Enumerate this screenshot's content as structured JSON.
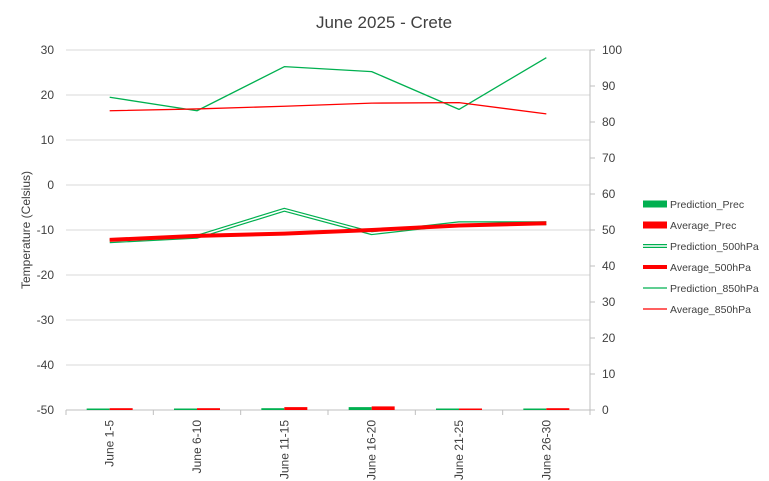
{
  "chart_data": {
    "type": "line",
    "title": "June 2025 - Crete",
    "ylabel": "Temperature (Celsius)",
    "y2label": "",
    "categories": [
      "June 1-5",
      "June 6-10",
      "June 11-15",
      "June 16-20",
      "June 21-25",
      "June 26-30"
    ],
    "ylim": [
      -50,
      30
    ],
    "y_ticks": [
      30,
      20,
      10,
      0,
      -10,
      -20,
      -30,
      -40,
      -50
    ],
    "y2lim": [
      0,
      100
    ],
    "y2_ticks": [
      100,
      90,
      80,
      70,
      60,
      50,
      40,
      30,
      20,
      10,
      0
    ],
    "grid": true,
    "legend_position": "right",
    "series": [
      {
        "name": "Prediction_Prec",
        "type": "bar",
        "axis": "secondary",
        "color": "#00b050",
        "values": [
          0.2,
          0.2,
          0.5,
          0.8,
          0.1,
          0.4
        ]
      },
      {
        "name": "Average_Prec",
        "type": "bar",
        "axis": "secondary",
        "color": "#ff0000",
        "values": [
          0.5,
          0.5,
          0.8,
          1.0,
          0.3,
          0.5
        ]
      },
      {
        "name": "Prediction_500hPa",
        "type": "line",
        "axis": "primary",
        "style": "double",
        "color": "#00b050",
        "values": [
          -12.5,
          -11.5,
          -5.5,
          -10.7,
          -8.5,
          -8.5
        ]
      },
      {
        "name": "Average_500hPa",
        "type": "line",
        "axis": "primary",
        "style": "thick",
        "color": "#ff0000",
        "values": [
          -12.2,
          -11.3,
          -10.8,
          -10.0,
          -9.0,
          -8.5
        ]
      },
      {
        "name": "Prediction_850hPa",
        "type": "line",
        "axis": "primary",
        "style": "thin",
        "color": "#00b050",
        "values": [
          19.5,
          16.5,
          26.3,
          25.2,
          16.8,
          28.3
        ]
      },
      {
        "name": "Average_850hPa",
        "type": "line",
        "axis": "primary",
        "style": "thin",
        "color": "#ff0000",
        "values": [
          16.5,
          16.9,
          17.5,
          18.2,
          18.3,
          15.8
        ]
      }
    ]
  }
}
